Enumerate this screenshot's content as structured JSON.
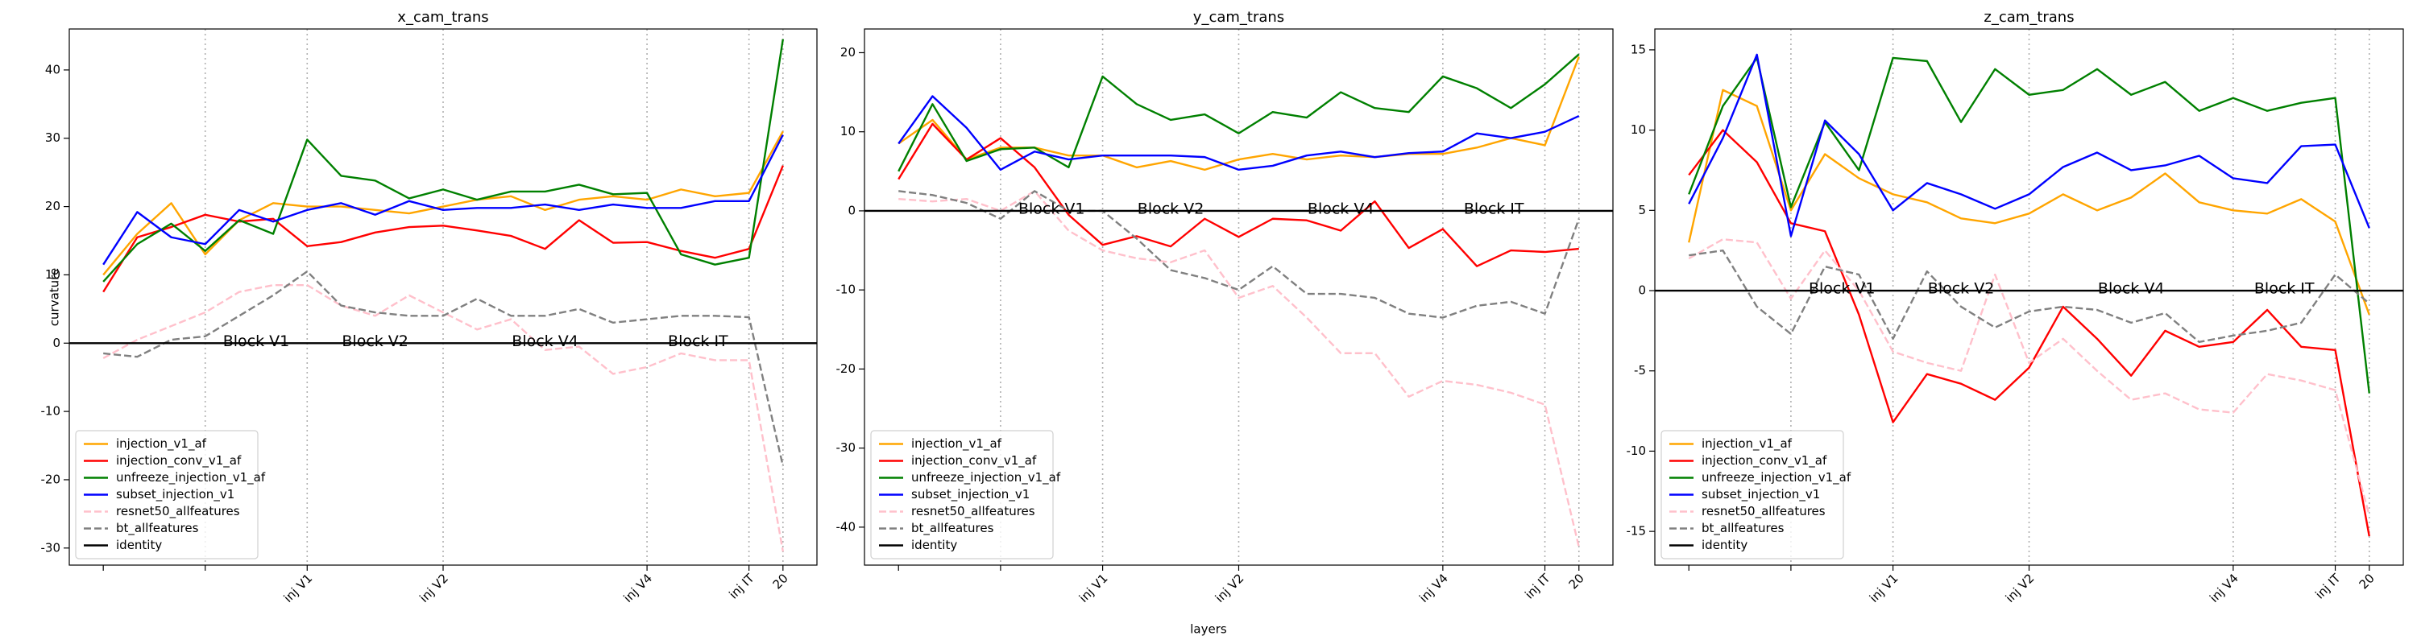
{
  "figure": {
    "xlabel": "layers"
  },
  "chart_data": [
    {
      "type": "line",
      "title": "x_cam_trans",
      "ylabel": "curvature",
      "x": [
        0,
        1,
        2,
        3,
        4,
        5,
        6,
        7,
        8,
        9,
        10,
        11,
        12,
        13,
        14,
        15,
        16,
        17,
        18,
        19,
        20
      ],
      "xlim": [
        -1,
        21
      ],
      "ylim": [
        -32.5,
        46
      ],
      "xticks": [
        {
          "value": 0,
          "label": null
        },
        {
          "value": 3,
          "label": null
        },
        {
          "value": 6,
          "label": "inj V1"
        },
        {
          "value": 10,
          "label": "inj V2"
        },
        {
          "value": 16,
          "label": "inj V4"
        },
        {
          "value": 19,
          "label": "inj IT"
        },
        20
      ],
      "yticks": [
        -30,
        -20,
        -10,
        0,
        10,
        20,
        30,
        40
      ],
      "vlines": [
        3,
        6,
        10,
        16,
        19,
        20
      ],
      "annotations": [
        "Block V1",
        "Block V2",
        "Block V4",
        "Block IT"
      ],
      "legend": "lower left",
      "series": [
        {
          "name": "injection_v1_af",
          "color": "#ffa500",
          "dash": false,
          "values": [
            10,
            16,
            20.5,
            13,
            18,
            20.5,
            20,
            20,
            19.5,
            19,
            20,
            21,
            21.5,
            19.5,
            21,
            21.5,
            21,
            22.5,
            21.5,
            22,
            31
          ]
        },
        {
          "name": "injection_conv_v1_af",
          "color": "#ff0000",
          "dash": false,
          "values": [
            7.5,
            15.5,
            17,
            18.8,
            17.8,
            18.2,
            14.2,
            14.8,
            16.2,
            17,
            17.2,
            16.5,
            15.7,
            13.8,
            18,
            14.7,
            14.8,
            13.5,
            12.5,
            13.8,
            26
          ]
        },
        {
          "name": "unfreeze_injection_v1_af",
          "color": "#008000",
          "dash": false,
          "values": [
            9,
            14.5,
            17.5,
            13.5,
            18,
            16,
            29.8,
            24.5,
            23.8,
            21.2,
            22.5,
            21,
            22.2,
            22.2,
            23.2,
            21.8,
            22,
            13,
            11.5,
            12.5,
            44.5
          ]
        },
        {
          "name": "subset_injection_v1",
          "color": "#0000ff",
          "dash": false,
          "values": [
            11.5,
            19.2,
            15.5,
            14.5,
            19.5,
            17.8,
            19.5,
            20.5,
            18.8,
            20.8,
            19.5,
            19.8,
            19.8,
            20.3,
            19.5,
            20.3,
            19.8,
            19.8,
            20.8,
            20.8,
            30.5
          ]
        },
        {
          "name": "resnet50_allfeatures",
          "color": "#ffc0cb",
          "dash": true,
          "values": [
            -2.2,
            0.5,
            2.5,
            4.5,
            7.5,
            8.5,
            8.5,
            5.5,
            4,
            7,
            4.5,
            2,
            3.5,
            -1,
            -0.5,
            -4.5,
            -3.5,
            -1.5,
            -2.5,
            -2.5,
            -30.5
          ]
        },
        {
          "name": "bt_allfeatures",
          "color": "#808080",
          "dash": true,
          "values": [
            -1.5,
            -2,
            0.5,
            1,
            4,
            7,
            10.5,
            5.5,
            4.5,
            4,
            4,
            6.5,
            4,
            4,
            5,
            3,
            3.5,
            4,
            4,
            3.8,
            -18
          ]
        },
        {
          "name": "identity",
          "color": "#000000",
          "dash": false,
          "hline": 0
        }
      ]
    },
    {
      "type": "line",
      "title": "y_cam_trans",
      "x": [
        0,
        1,
        2,
        3,
        4,
        5,
        6,
        7,
        8,
        9,
        10,
        11,
        12,
        13,
        14,
        15,
        16,
        17,
        18,
        19,
        20
      ],
      "xlim": [
        -1,
        21
      ],
      "ylim": [
        -44.8,
        23
      ],
      "xticks": [
        {
          "value": 0,
          "label": null
        },
        {
          "value": 3,
          "label": null
        },
        {
          "value": 6,
          "label": "inj V1"
        },
        {
          "value": 10,
          "label": "inj V2"
        },
        {
          "value": 16,
          "label": "inj V4"
        },
        {
          "value": 19,
          "label": "inj IT"
        },
        20
      ],
      "yticks": [
        -40,
        -30,
        -20,
        -10,
        0,
        10,
        20
      ],
      "vlines": [
        3,
        6,
        10,
        16,
        19,
        20
      ],
      "annotations": [
        "Block V1",
        "Block V2",
        "Block V4",
        "Block IT"
      ],
      "legend": "lower left",
      "series": [
        {
          "name": "injection_v1_af",
          "color": "#ffa500",
          "dash": false,
          "values": [
            8.5,
            11.5,
            6.5,
            8,
            8,
            7,
            7,
            5.5,
            6.3,
            5.2,
            6.5,
            7.2,
            6.5,
            7,
            6.8,
            7.2,
            7.2,
            8,
            9.2,
            8.3,
            19.5
          ]
        },
        {
          "name": "injection_conv_v1_af",
          "color": "#ff0000",
          "dash": false,
          "values": [
            4,
            11,
            6.5,
            9.2,
            5.5,
            -0.5,
            -4.3,
            -3.2,
            -4.5,
            -1,
            -3.3,
            -1,
            -1.2,
            -2.5,
            1.2,
            -4.7,
            -2.3,
            -7,
            -5,
            -5.2,
            -4.8
          ]
        },
        {
          "name": "unfreeze_injection_v1_af",
          "color": "#008000",
          "dash": false,
          "values": [
            5,
            13.5,
            6.3,
            7.8,
            8,
            5.5,
            17,
            13.5,
            11.5,
            12.2,
            9.8,
            12.5,
            11.8,
            15,
            13,
            12.5,
            17,
            15.5,
            13,
            16,
            19.8
          ]
        },
        {
          "name": "subset_injection_v1",
          "color": "#0000ff",
          "dash": false,
          "values": [
            8.5,
            14.5,
            10.5,
            5.2,
            7.5,
            6.5,
            7,
            7,
            7,
            6.8,
            5.2,
            5.7,
            7,
            7.5,
            6.8,
            7.3,
            7.5,
            9.8,
            9.2,
            10,
            12
          ]
        },
        {
          "name": "resnet50_allfeatures",
          "color": "#ffc0cb",
          "dash": true,
          "values": [
            1.5,
            1.2,
            1.5,
            0,
            2.5,
            -2.5,
            -5,
            -6,
            -6.5,
            -5,
            -11,
            -9.5,
            -13.5,
            -18,
            -18,
            -23.5,
            -21.5,
            -22,
            -23,
            -24.5,
            -42.5
          ]
        },
        {
          "name": "bt_allfeatures",
          "color": "#808080",
          "dash": true,
          "values": [
            2.5,
            2,
            1,
            -1,
            2.5,
            0,
            0,
            -3.5,
            -7.5,
            -8.5,
            -10,
            -7,
            -10.5,
            -10.5,
            -11,
            -13,
            -13.5,
            -12,
            -11.5,
            -13,
            -1
          ]
        },
        {
          "name": "identity",
          "color": "#000000",
          "dash": false,
          "hline": 0
        }
      ]
    },
    {
      "type": "line",
      "title": "z_cam_trans",
      "x": [
        0,
        1,
        2,
        3,
        4,
        5,
        6,
        7,
        8,
        9,
        10,
        11,
        12,
        13,
        14,
        15,
        16,
        17,
        18,
        19,
        20
      ],
      "xlim": [
        -1,
        21
      ],
      "ylim": [
        -17.1,
        16.3
      ],
      "xticks": [
        {
          "value": 0,
          "label": null
        },
        {
          "value": 3,
          "label": null
        },
        {
          "value": 6,
          "label": "inj V1"
        },
        {
          "value": 10,
          "label": "inj V2"
        },
        {
          "value": 16,
          "label": "inj V4"
        },
        {
          "value": 19,
          "label": "inj IT"
        },
        20
      ],
      "yticks": [
        -15,
        -10,
        -5,
        0,
        5,
        10,
        15
      ],
      "vlines": [
        3,
        6,
        10,
        16,
        19,
        20
      ],
      "annotations": [
        "Block V1",
        "Block V2",
        "Block V4",
        "Block IT"
      ],
      "legend": "lower left",
      "series": [
        {
          "name": "injection_v1_af",
          "color": "#ffa500",
          "dash": false,
          "values": [
            3,
            12.5,
            11.5,
            5,
            8.5,
            7,
            6,
            5.5,
            4.5,
            4.2,
            4.8,
            6,
            5,
            5.8,
            7.3,
            5.5,
            5,
            4.8,
            5.7,
            4.3,
            -1.5
          ]
        },
        {
          "name": "injection_conv_v1_af",
          "color": "#ff0000",
          "dash": false,
          "values": [
            7.2,
            10,
            8,
            4.2,
            3.7,
            -1.5,
            -8.2,
            -5.2,
            -5.8,
            -6.8,
            -4.8,
            -1,
            -3,
            -5.3,
            -2.5,
            -3.5,
            -3.2,
            -1.2,
            -3.5,
            -3.7,
            -15.3
          ]
        },
        {
          "name": "unfreeze_injection_v1_af",
          "color": "#008000",
          "dash": false,
          "values": [
            6,
            11.5,
            14.5,
            5.2,
            10.5,
            7.5,
            14.5,
            14.3,
            10.5,
            13.8,
            12.2,
            12.5,
            13.8,
            12.2,
            13,
            11.2,
            12,
            11.2,
            11.7,
            12,
            -6.4
          ]
        },
        {
          "name": "subset_injection_v1",
          "color": "#0000ff",
          "dash": false,
          "values": [
            5.4,
            9.5,
            14.7,
            3.4,
            10.6,
            8.5,
            5,
            6.7,
            6,
            5.1,
            6,
            7.7,
            8.6,
            7.5,
            7.8,
            8.4,
            7,
            6.7,
            9,
            9.1,
            3.9
          ]
        },
        {
          "name": "resnet50_allfeatures",
          "color": "#ffc0cb",
          "dash": true,
          "values": [
            2,
            3.2,
            3,
            -0.5,
            2.5,
            0,
            -3.8,
            -4.5,
            -5,
            1,
            -4.5,
            -3,
            -5,
            -6.8,
            -6.4,
            -7.4,
            -7.6,
            -5.2,
            -5.6,
            -6.2,
            -14
          ]
        },
        {
          "name": "bt_allfeatures",
          "color": "#808080",
          "dash": true,
          "values": [
            2.2,
            2.5,
            -1,
            -2.7,
            1.5,
            1,
            -3,
            1.2,
            -1,
            -2.3,
            -1.3,
            -1,
            -1.2,
            -2,
            -1.4,
            -3.2,
            -2.8,
            -2.5,
            -2,
            1,
            -0.8
          ]
        },
        {
          "name": "identity",
          "color": "#000000",
          "dash": false,
          "hline": 0
        }
      ]
    }
  ]
}
